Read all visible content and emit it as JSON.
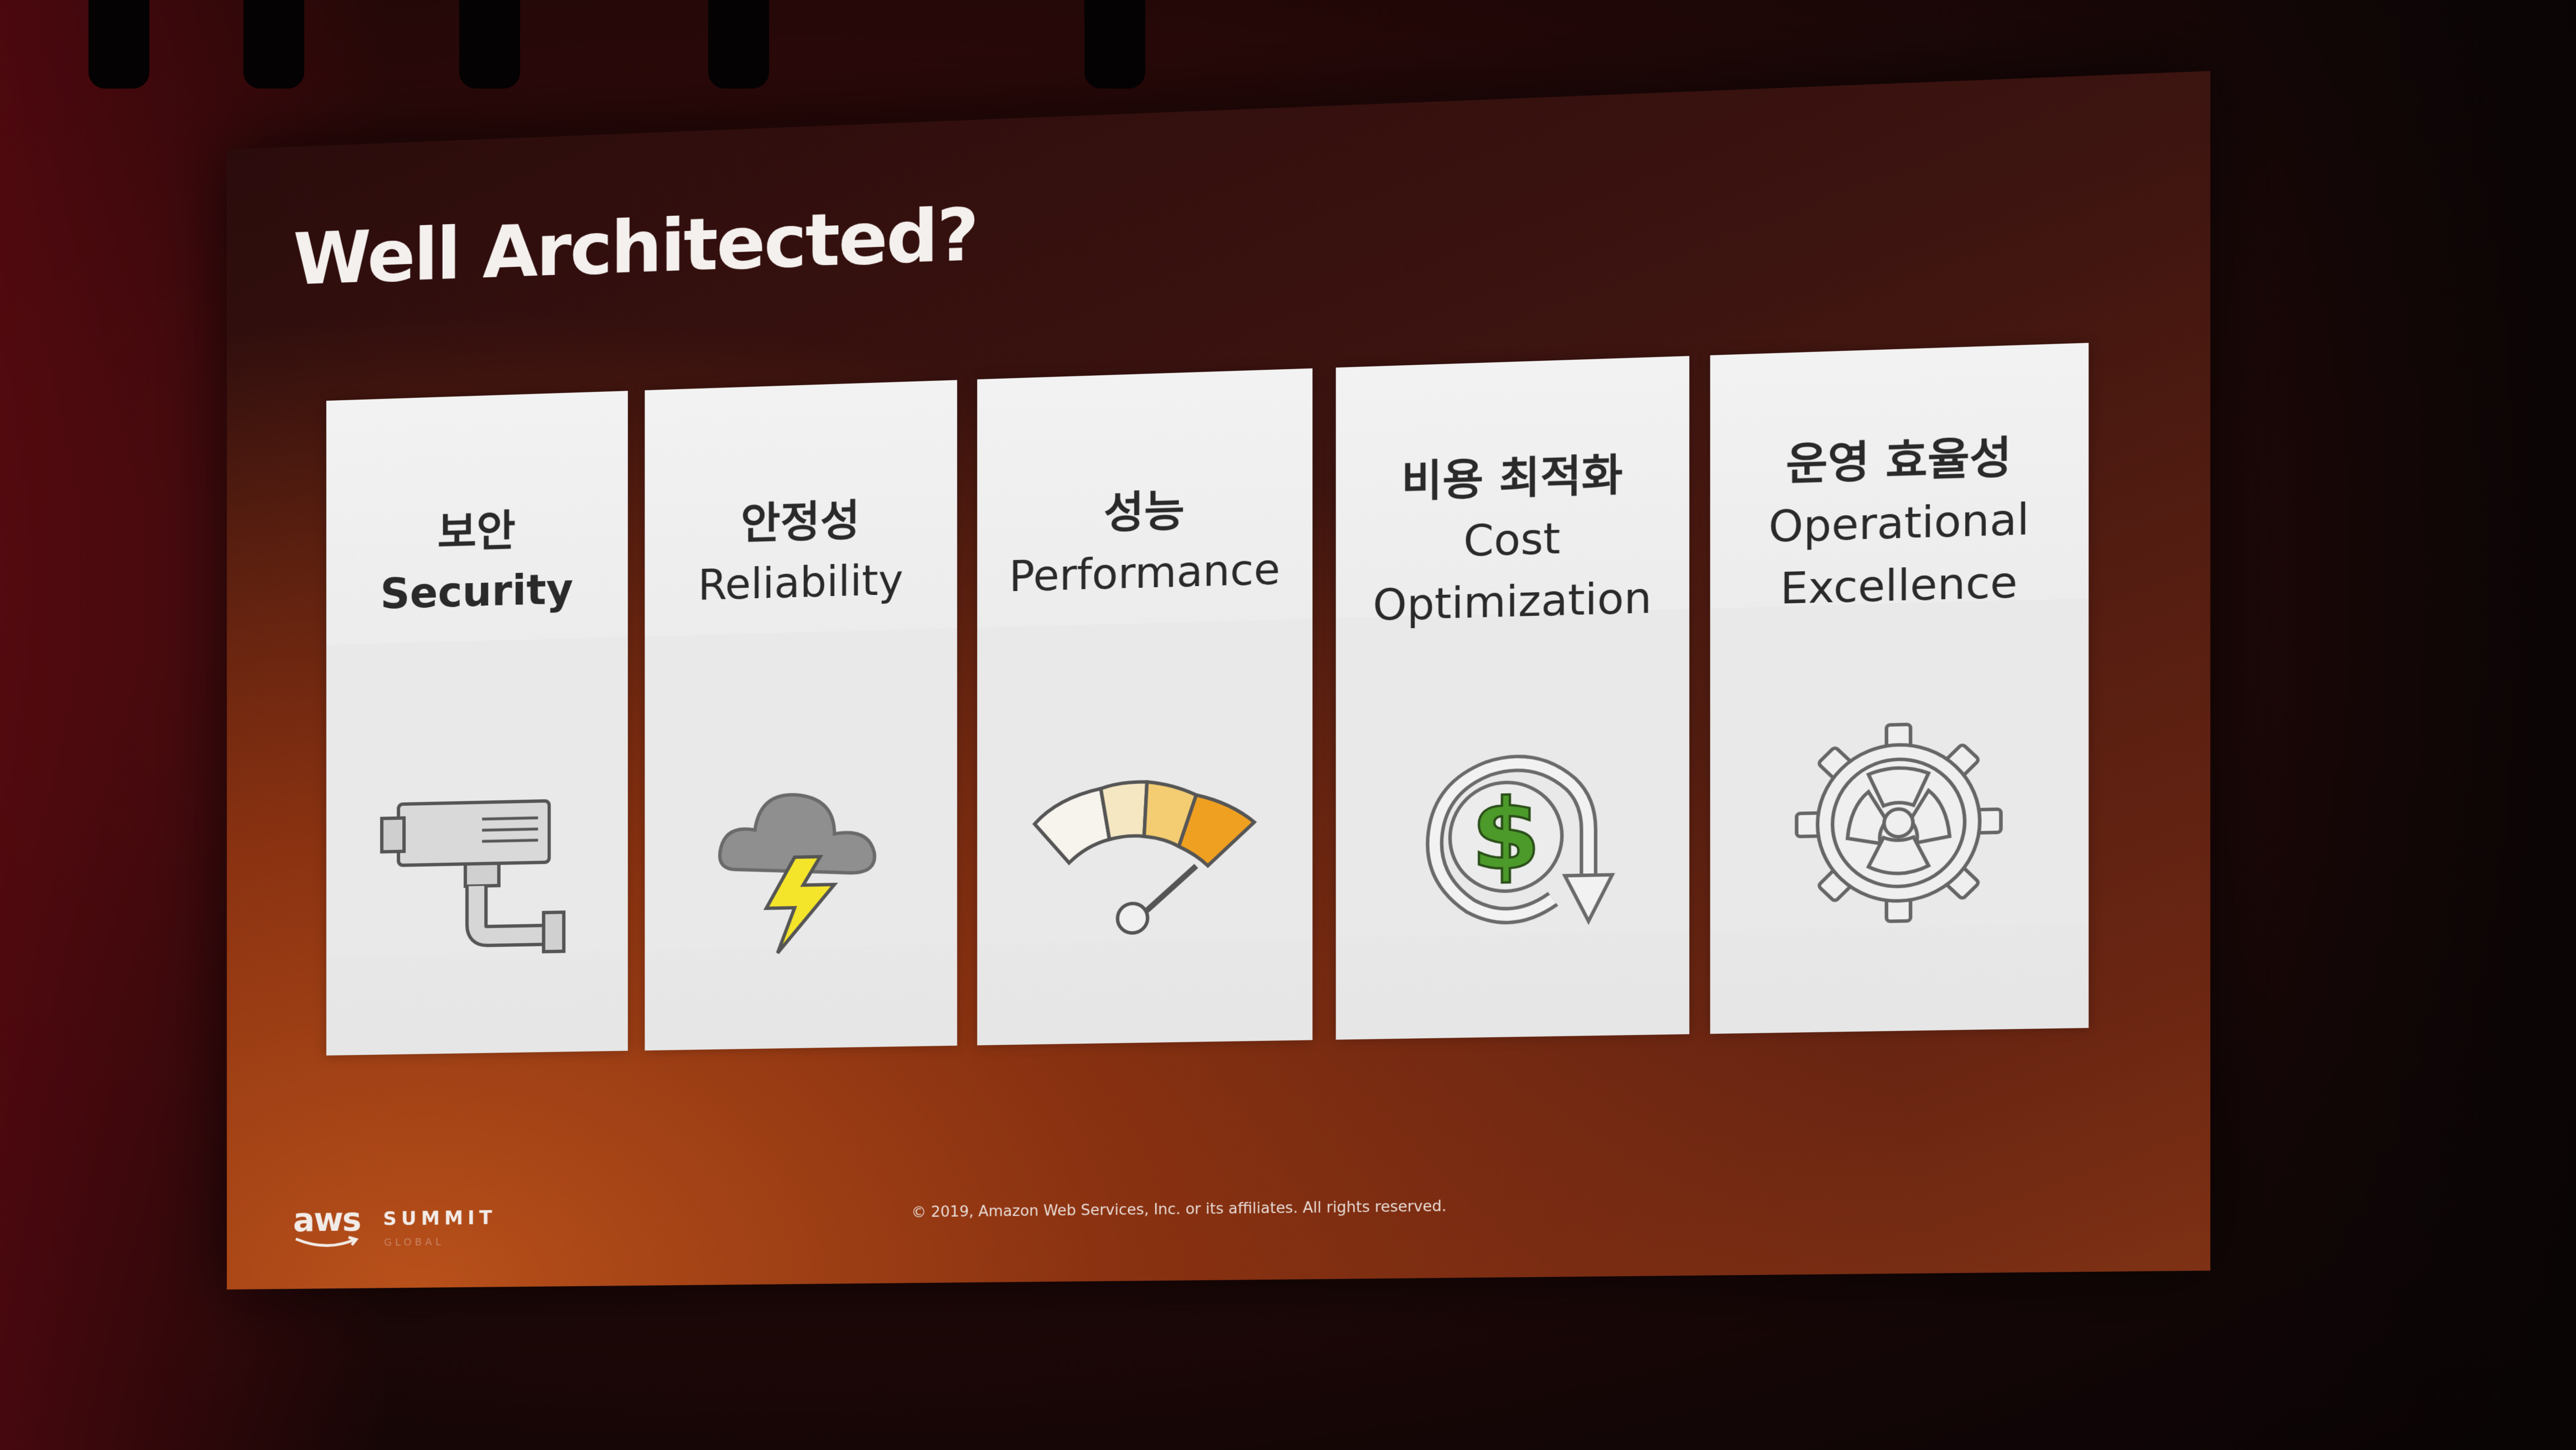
{
  "slide": {
    "title": "Well Architected?",
    "pillars": [
      {
        "korean": "보안",
        "english": "Security",
        "icon": "security-camera-icon"
      },
      {
        "korean": "안정성",
        "english": "Reliability",
        "icon": "storm-cloud-icon"
      },
      {
        "korean": "성능",
        "english": "Performance",
        "icon": "gauge-icon"
      },
      {
        "korean": "비용 최적화",
        "english_line1": "Cost",
        "english_line2": "Optimization",
        "icon": "dollar-cycle-icon"
      },
      {
        "korean": "운영 효율성",
        "english_line1": "Operational",
        "english_line2": "Excellence",
        "icon": "gear-icon"
      }
    ],
    "footer": {
      "logo_aws": "aws",
      "logo_summit": "SUMMIT",
      "logo_sub": "GLOBAL",
      "copyright": "© 2019, Amazon Web Services, Inc. or its affiliates. All rights reserved."
    }
  },
  "colors": {
    "slide_gradient_dark": "#2b0c0c",
    "slide_gradient_warm": "#b8501a",
    "pillar_background": "#efefef",
    "title_text": "#f4f0ee",
    "lightning_yellow": "#f5e52a",
    "gauge_orange": "#f0a020",
    "dollar_green": "#4c9a2a"
  }
}
